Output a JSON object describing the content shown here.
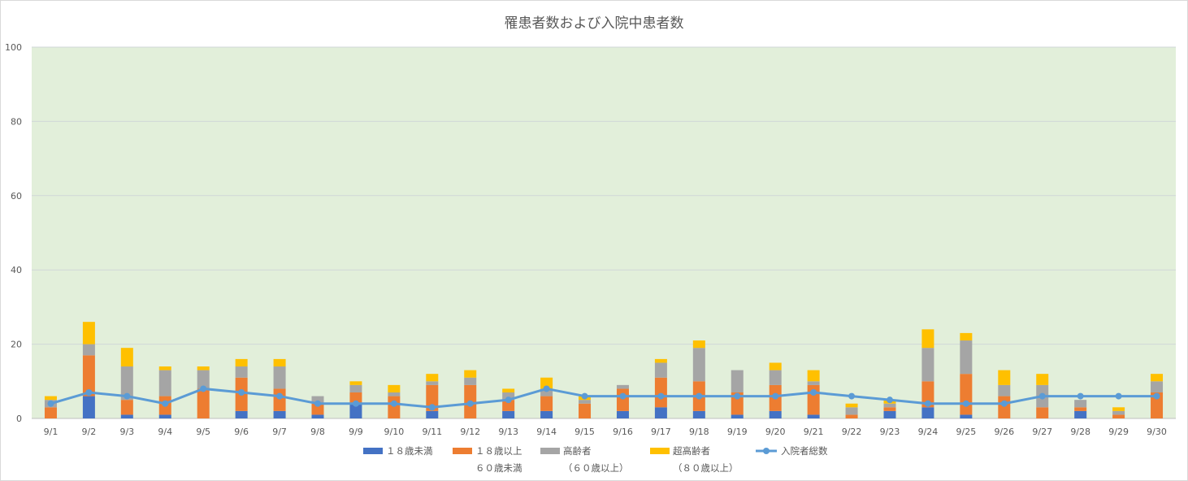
{
  "chart_data": {
    "type": "bar",
    "stacked": true,
    "title": "罹患者数および入院中患者数",
    "ylim": [
      0,
      100
    ],
    "yticks": [
      0,
      20,
      40,
      60,
      80,
      100
    ],
    "plot_background": "#e2efda",
    "gridlines": true,
    "legend_position": "bottom",
    "categories": [
      "9/1",
      "9/2",
      "9/3",
      "9/4",
      "9/5",
      "9/6",
      "9/7",
      "9/8",
      "9/9",
      "9/10",
      "9/11",
      "9/12",
      "9/13",
      "9/14",
      "9/15",
      "9/16",
      "9/17",
      "9/18",
      "9/19",
      "9/20",
      "9/21",
      "9/22",
      "9/23",
      "9/24",
      "9/25",
      "9/26",
      "9/27",
      "9/28",
      "9/29",
      "9/30"
    ],
    "series": [
      {
        "name": "１８歳未満",
        "color": "#4472c4",
        "kind": "bar",
        "values": [
          0,
          6,
          1,
          1,
          0,
          2,
          2,
          1,
          4,
          0,
          2,
          0,
          2,
          2,
          0,
          2,
          3,
          2,
          1,
          2,
          1,
          0,
          2,
          3,
          1,
          0,
          0,
          2,
          0,
          0
        ]
      },
      {
        "name": "１８歳以上",
        "name_line2": "６０歳未満",
        "color": "#ed7d31",
        "kind": "bar",
        "values": [
          3,
          11,
          4,
          5,
          8,
          9,
          6,
          3,
          3,
          6,
          7,
          9,
          3,
          4,
          4,
          6,
          8,
          8,
          6,
          7,
          8,
          1,
          1,
          7,
          11,
          6,
          3,
          1,
          1,
          7
        ]
      },
      {
        "name": "高齢者",
        "name_line2": "（６０歳以上）",
        "color": "#a5a5a5",
        "kind": "bar",
        "values": [
          2,
          3,
          9,
          7,
          5,
          3,
          6,
          2,
          2,
          1,
          1,
          2,
          2,
          2,
          1,
          1,
          4,
          9,
          6,
          4,
          1,
          2,
          1,
          9,
          9,
          3,
          6,
          2,
          1,
          3
        ]
      },
      {
        "name": "超高齢者",
        "name_line2": "（８０歳以上）",
        "color": "#ffc000",
        "kind": "bar",
        "values": [
          1,
          6,
          5,
          1,
          1,
          2,
          2,
          0,
          1,
          2,
          2,
          2,
          1,
          3,
          1,
          0,
          1,
          2,
          0,
          2,
          3,
          1,
          1,
          5,
          2,
          4,
          3,
          0,
          1,
          2
        ]
      },
      {
        "name": "入院者総数",
        "color": "#5b9bd5",
        "kind": "line",
        "values": [
          4,
          7,
          6,
          4,
          8,
          7,
          6,
          4,
          4,
          4,
          3,
          4,
          5,
          8,
          6,
          6,
          6,
          6,
          6,
          6,
          7,
          6,
          5,
          4,
          4,
          4,
          6,
          6,
          6,
          6
        ]
      }
    ]
  }
}
